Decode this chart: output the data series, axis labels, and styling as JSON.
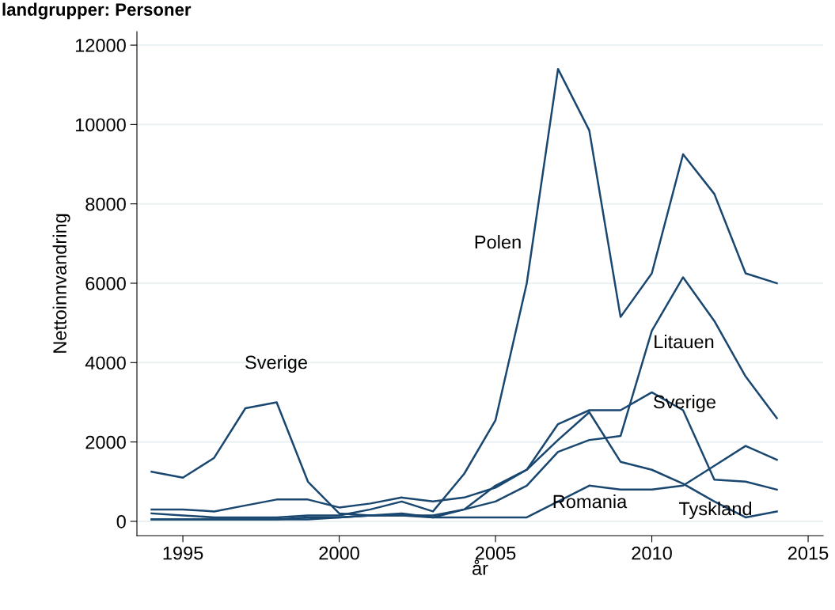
{
  "chart_data": {
    "type": "line",
    "title": "landgrupper: Personer",
    "xlabel": "år",
    "ylabel": "Nettoinnvandring",
    "x": [
      1994,
      1995,
      1996,
      1997,
      1998,
      1999,
      2000,
      2001,
      2002,
      2003,
      2004,
      2005,
      2006,
      2007,
      2008,
      2009,
      2010,
      2011,
      2012,
      2013,
      2014
    ],
    "series": [
      {
        "color": "#1a476f",
        "values": [
          200,
          150,
          100,
          100,
          100,
          150,
          150,
          300,
          500,
          250,
          1200,
          2550,
          6000,
          11400,
          9850,
          5150,
          6250,
          9250,
          8250,
          6250,
          6000
        ]
      },
      {
        "color": "#1a476f",
        "values": [
          1250,
          1100,
          1600,
          2850,
          3000,
          1000,
          200,
          150,
          200,
          100,
          300,
          900,
          1300,
          2450,
          2800,
          2800,
          3250,
          2800,
          1050,
          1000,
          800
        ]
      },
      {
        "color": "#1a476f",
        "values": [
          50,
          50,
          50,
          50,
          50,
          50,
          100,
          150,
          150,
          150,
          300,
          500,
          900,
          1750,
          2050,
          2150,
          4800,
          6150,
          5050,
          3650,
          2600
        ]
      },
      {
        "color": "#1a476f",
        "values": [
          50,
          50,
          50,
          50,
          50,
          100,
          100,
          150,
          150,
          100,
          100,
          100,
          100,
          500,
          900,
          800,
          800,
          900,
          1400,
          1900,
          1550
        ]
      },
      {
        "color": "#1a476f",
        "values": [
          300,
          300,
          250,
          400,
          550,
          550,
          350,
          450,
          600,
          500,
          600,
          850,
          1300,
          2050,
          2750,
          1500,
          1300,
          950,
          500,
          100,
          250
        ]
      }
    ],
    "annotations": [
      "Polen",
      "Sverige",
      "Litauen",
      "Sverige",
      "Romania",
      "Tyskland"
    ],
    "xlim": [
      1993.53,
      2015.48
    ],
    "ylim": [
      -360,
      12340
    ],
    "xticks": [
      1995,
      2000,
      2005,
      2010,
      2015
    ],
    "yticks": [
      0,
      2000,
      4000,
      6000,
      8000,
      10000,
      12000
    ],
    "grid": "y",
    "legend": false,
    "marker": "none",
    "line_style": "solid"
  }
}
